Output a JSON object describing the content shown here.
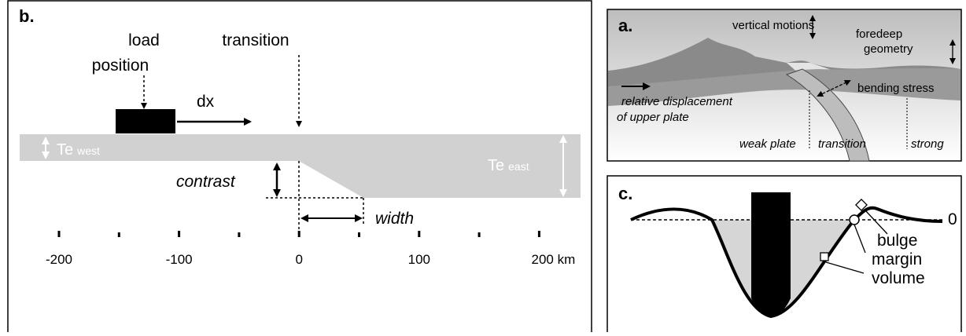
{
  "panel_b": {
    "label": "b.",
    "load_line1": "load",
    "load_line2": "position",
    "transition": "transition",
    "dx": "dx",
    "te_west": {
      "te": "Te",
      "sub": "west"
    },
    "te_east": {
      "te": "Te",
      "sub": "east"
    },
    "contrast": "contrast",
    "width": "width",
    "axis_labels": [
      "-200",
      "-100",
      "0",
      "100",
      "200 km"
    ]
  },
  "panel_a": {
    "label": "a.",
    "vertical_motions": "vertical motions",
    "foredeep_line1": "foredeep",
    "foredeep_line2": "geometry",
    "bending_stress": "bending stress",
    "relative_line1": "relative displacement",
    "relative_line2": "of upper plate",
    "weak_plate": "weak plate",
    "transition": "transition",
    "strong": "strong"
  },
  "panel_c": {
    "label": "c.",
    "zero": "0",
    "bulge": "bulge",
    "margin": "margin",
    "volume": "volume"
  }
}
